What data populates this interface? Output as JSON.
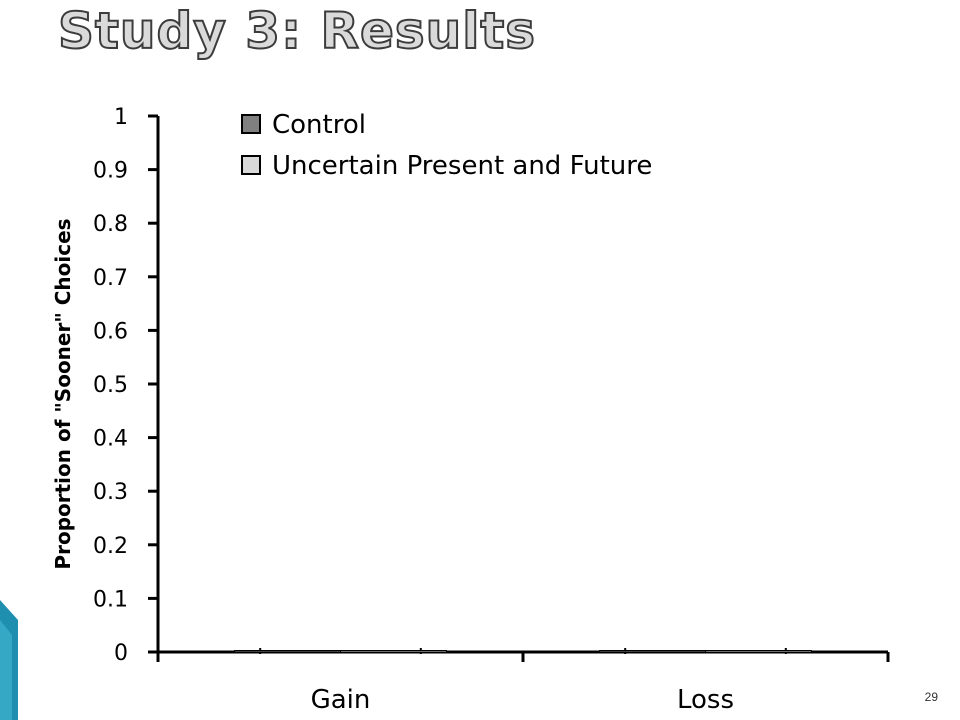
{
  "slide": {
    "title": "Study 3: Results",
    "page_number": "29"
  },
  "colors": {
    "control": "#808080",
    "uncertain": "#d9d9d9",
    "axis": "#000000",
    "accent_corner": "#1f8fb0"
  },
  "chart_data": {
    "type": "bar",
    "categories": [
      "Gain",
      "Loss"
    ],
    "series": [
      {
        "name": "Control",
        "values": [
          0,
          0
        ]
      },
      {
        "name": "Uncertain Present and Future",
        "values": [
          0,
          0
        ]
      }
    ],
    "ylabel": "Proportion of \"Sooner\" Choices",
    "xlabel": "",
    "ylim": [
      0,
      1
    ],
    "yticks": [
      "0",
      "0.1",
      "0.2",
      "0.3",
      "0.4",
      "0.5",
      "0.6",
      "0.7",
      "0.8",
      "0.9",
      "1"
    ],
    "grid": false,
    "legend_position": "top-left"
  }
}
